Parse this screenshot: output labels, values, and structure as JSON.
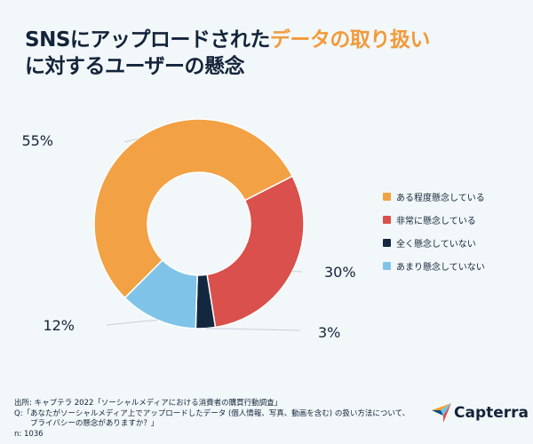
{
  "title": {
    "part1": "SNSにアップロードされた",
    "highlight": "データの取り扱い",
    "line2": "に対するユーザーの懸念"
  },
  "chart_data": {
    "type": "donut",
    "categories": [
      "ある程度懸念している",
      "非常に懸念している",
      "全く懸念していない",
      "あまり懸念していない"
    ],
    "values": [
      55,
      30,
      3,
      12
    ],
    "labels": [
      "55%",
      "30%",
      "3%",
      "12%"
    ],
    "colors": [
      "#f2a145",
      "#d9504c",
      "#13283f",
      "#7fc3e8"
    ],
    "legend_position": "right"
  },
  "footer": {
    "source": "出所: キャプテラ 2022「ソーシャルメディアにおける消費者の購買行動調査」",
    "question1": "Q:「あなたがソーシャルメディア上でアップロードしたデータ (個人情報、写真、動画を含む) の扱い方法について、",
    "question2": "プライバシーの懸念がありますか？」",
    "n": "n: 1036"
  },
  "logo": {
    "text": "Capterra"
  }
}
